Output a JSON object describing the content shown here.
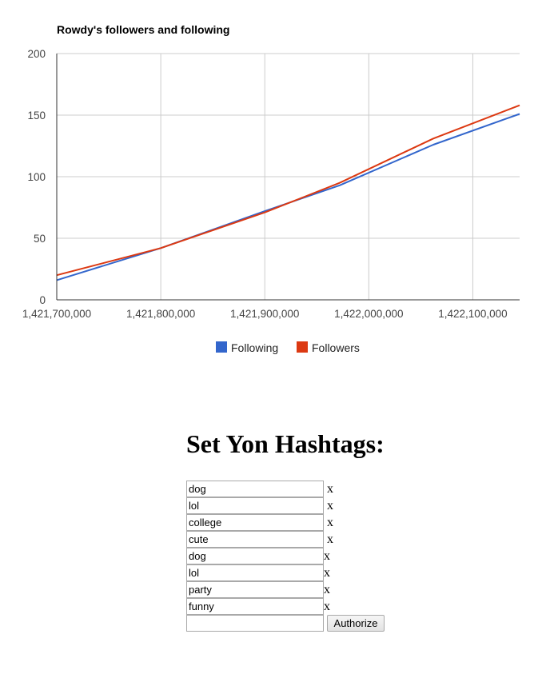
{
  "chart_data": {
    "type": "line",
    "title": "Rowdy's followers and following",
    "xlabel": "",
    "ylabel": "",
    "xlim": [
      1421700000,
      1422145000
    ],
    "ylim": [
      0,
      200
    ],
    "x_ticks": [
      1421700000,
      1421800000,
      1421900000,
      1422000000,
      1422100000
    ],
    "x_tick_labels": [
      "1,421,700,000",
      "1,421,800,000",
      "1,421,900,000",
      "1,422,000,000",
      "1,422,100,000"
    ],
    "y_ticks": [
      0,
      50,
      100,
      150,
      200
    ],
    "y_tick_labels": [
      "0",
      "50",
      "100",
      "150",
      "200"
    ],
    "grid": true,
    "legend": "bottom",
    "series": [
      {
        "name": "Following",
        "color": "#3366cc",
        "x": [
          1421700000,
          1421800000,
          1421900000,
          1421972000,
          1422062000,
          1422145000
        ],
        "y": [
          16,
          42,
          72,
          93,
          126,
          151
        ]
      },
      {
        "name": "Followers",
        "color": "#dc3912",
        "x": [
          1421700000,
          1421800000,
          1421900000,
          1421972000,
          1422062000,
          1422145000
        ],
        "y": [
          20,
          42,
          71,
          95,
          131,
          158
        ]
      }
    ]
  },
  "hashtags": {
    "heading": "Set Yon Hashtags:",
    "tags": [
      "dog",
      "lol",
      "college",
      "cute",
      "dog",
      "lol",
      "party",
      "funny"
    ],
    "remove_label": "x",
    "new_tag_value": "",
    "authorize_label": "Authorize"
  }
}
